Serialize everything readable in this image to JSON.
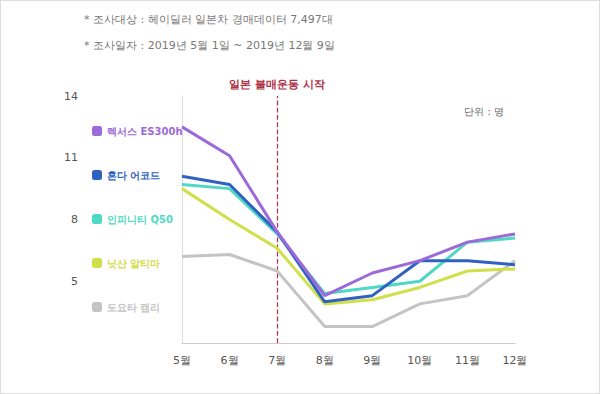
{
  "chart_data": {
    "type": "line",
    "notes": [
      "* 조사대상 : 헤이딜러 일본차 경매데이터 7,497대",
      "* 조사일자 : 2019년 5월 1일 ~ 2019년 12월 9일"
    ],
    "unit": "단위 : 명",
    "annotation": {
      "text": "일본 불매운동 시작",
      "x": "7월",
      "color": "#b03046",
      "line_style": "dashed"
    },
    "categories": [
      "5월",
      "6월",
      "7월",
      "8월",
      "9월",
      "10월",
      "11월",
      "12월"
    ],
    "series": [
      {
        "name": "렉서스 ES300h",
        "color": "#9c6ad8",
        "values": [
          12.5,
          11.1,
          7.4,
          4.3,
          5.4,
          6.0,
          6.9,
          7.3
        ]
      },
      {
        "name": "혼다 어코드",
        "color": "#2f62c0",
        "values": [
          10.1,
          9.7,
          7.4,
          4.0,
          4.3,
          6.0,
          6.0,
          5.8
        ]
      },
      {
        "name": "인피니티 Q50",
        "color": "#4fd9c4",
        "values": [
          9.7,
          9.5,
          7.3,
          4.4,
          4.7,
          5.0,
          6.9,
          7.1
        ]
      },
      {
        "name": "닛산 알티마",
        "color": "#cfe04a",
        "values": [
          9.5,
          8.0,
          6.6,
          3.9,
          4.1,
          4.7,
          5.5,
          5.6
        ]
      },
      {
        "name": "도요타 캠리",
        "color": "#c4c4c4",
        "values": [
          6.2,
          6.3,
          5.5,
          2.8,
          2.8,
          3.9,
          4.3,
          6.0
        ]
      }
    ],
    "ylim": [
      2,
      14
    ],
    "yticks": [
      5,
      8,
      11,
      14
    ],
    "grid": false,
    "legend": "left"
  }
}
